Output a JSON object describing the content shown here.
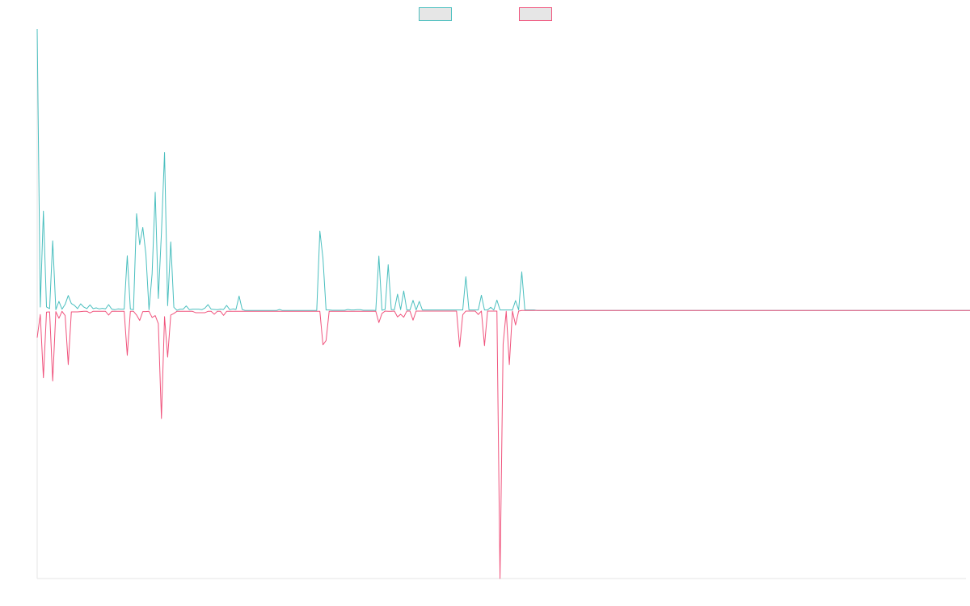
{
  "chart_data": {
    "type": "line",
    "title": "",
    "xlabel": "",
    "ylabel": "",
    "grid": false,
    "legend_position": "top-center",
    "ylim": [
      -100,
      105
    ],
    "x_count": 300,
    "series": [
      {
        "color": "#4bbfbf",
        "fill": "#e6e6e6",
        "values": [
          105,
          1.3,
          37.1,
          1.3,
          0.7,
          26,
          0.3,
          3.4,
          0.5,
          2.3,
          5.6,
          2.6,
          1.9,
          0.7,
          2.5,
          1.3,
          0.7,
          2.1,
          0.7,
          1,
          0.6,
          0.8,
          0.6,
          2.2,
          0.5,
          0.3,
          0.6,
          0.5,
          0.5,
          20.4,
          0.5,
          0.3,
          36.1,
          24.6,
          31,
          20.9,
          0.3,
          13.7,
          44.1,
          4.5,
          29,
          59,
          1.8,
          25.6,
          1.2,
          0.1,
          0.5,
          0.5,
          1.7,
          0.3,
          0.5,
          0.5,
          0.5,
          0.3,
          0.9,
          2.2,
          0.5,
          0.4,
          0.3,
          0.5,
          0.4,
          1.9,
          0.3,
          0.6,
          0.4,
          5.4,
          0.4,
          0,
          0,
          0,
          0,
          0,
          0,
          0,
          0,
          0,
          0,
          0,
          0.4,
          0,
          0,
          0,
          0,
          0,
          0,
          0,
          0,
          0,
          0,
          0,
          0,
          29.6,
          19.5,
          0.2,
          0.2,
          0.1,
          0.1,
          0.1,
          0.1,
          0.1,
          0.4,
          0.2,
          0.2,
          0.3,
          0.3,
          0.1,
          0.1,
          0.1,
          0.1,
          0,
          20.3,
          0.1,
          0.4,
          17.1,
          0.3,
          0.3,
          6.1,
          0.3,
          7.3,
          0.2,
          0.2,
          3.8,
          0.2,
          3.4,
          0.2,
          0.2,
          0.2,
          0.2,
          0.2,
          0.2,
          0.2,
          0.2,
          0.2,
          0.2,
          0.2,
          0.2,
          0.2,
          0.2,
          12.6,
          0.2,
          0.2,
          0.2,
          0.2,
          5.7,
          0.2,
          0.2,
          1.2,
          0.2,
          3.9,
          0.2,
          0.2,
          0.2,
          0.2,
          0.2,
          3.7,
          0.2,
          14.4,
          0.2,
          0.2,
          0.2,
          0.2,
          0,
          0,
          0,
          0,
          0,
          0,
          0,
          0,
          0,
          0,
          0,
          0,
          0,
          0,
          0,
          0,
          0,
          0,
          0,
          0,
          0,
          0,
          0,
          0,
          0,
          0,
          0,
          0,
          0,
          0,
          0,
          0,
          0,
          0,
          0,
          0,
          0,
          0,
          0,
          0,
          0,
          0,
          0,
          0,
          0,
          0,
          0,
          0,
          0,
          0,
          0,
          0,
          0,
          0,
          0,
          0,
          0,
          0,
          0,
          0,
          0,
          0,
          0,
          0,
          0,
          0,
          0,
          0,
          0,
          0,
          0,
          0,
          0,
          0,
          0,
          0,
          0,
          0,
          0,
          0,
          0,
          0,
          0,
          0,
          0,
          0,
          0,
          0,
          0,
          0,
          0,
          0,
          0,
          0,
          0,
          0,
          0,
          0,
          0,
          0,
          0,
          0,
          0,
          0,
          0,
          0,
          0,
          0,
          0,
          0,
          0,
          0,
          0,
          0,
          0,
          0,
          0,
          0,
          0,
          0,
          0,
          0,
          0,
          0,
          0,
          0,
          0,
          0,
          0,
          0,
          0,
          0,
          0,
          0,
          0,
          0,
          0,
          0,
          0,
          0,
          0
        ]
      },
      {
        "color": "#f0547d",
        "fill": "#e6e6e6",
        "values": [
          -10.1,
          -1.5,
          -25.1,
          -0.6,
          -0.5,
          -26.3,
          -0.4,
          -2.9,
          -0.3,
          -1.9,
          -20.2,
          -0.5,
          -0.5,
          -0.5,
          -0.4,
          -0.3,
          -0.3,
          -0.9,
          -0.3,
          -0.3,
          -0.3,
          -0.3,
          -0.3,
          -1.7,
          -0.3,
          -0.3,
          -0.3,
          -0.3,
          -0.3,
          -16.7,
          -0.3,
          -0.3,
          -1.7,
          -3.7,
          -0.4,
          -0.4,
          -0.3,
          -2.6,
          -1.9,
          -4.9,
          -40.3,
          -2.3,
          -17.4,
          -1.7,
          -1.1,
          -0.3,
          -0.3,
          -0.3,
          -0.3,
          -0.3,
          -0.3,
          -0.8,
          -0.8,
          -0.8,
          -0.8,
          -0.3,
          -0.3,
          -1.4,
          -0.3,
          -0.3,
          -1.8,
          -0.3,
          -0.3,
          -0.3,
          -0.3,
          -0.3,
          -0.3,
          -0.3,
          -0.3,
          -0.3,
          -0.3,
          -0.3,
          -0.3,
          -0.3,
          -0.3,
          -0.3,
          -0.3,
          -0.3,
          -0.3,
          -0.3,
          -0.3,
          -0.3,
          -0.3,
          -0.3,
          -0.3,
          -0.3,
          -0.3,
          -0.3,
          -0.3,
          -0.3,
          -0.3,
          -0.3,
          -12.8,
          -11.2,
          -0.3,
          -0.3,
          -0.3,
          -0.3,
          -0.3,
          -0.3,
          -0.3,
          -0.3,
          -0.3,
          -0.3,
          -0.3,
          -0.3,
          -0.3,
          -0.3,
          -0.3,
          -0.3,
          -4.5,
          -1.1,
          -0.2,
          -0.3,
          -0.3,
          -0.2,
          -2.4,
          -1.4,
          -2.5,
          -0.2,
          -0.2,
          -3.6,
          -0.2,
          -0.2,
          -0.2,
          -0.2,
          -0.2,
          -0.2,
          -0.2,
          -0.2,
          -0.2,
          -0.2,
          -0.2,
          -0.2,
          -0.2,
          -0.2,
          -13.5,
          -1.6,
          -0.2,
          -0.2,
          -0.2,
          -0.2,
          -1.5,
          -0.2,
          -13.1,
          -0.2,
          -0.2,
          -0.2,
          -0.2,
          -100,
          -12.6,
          -0.3,
          -20.2,
          -0.2,
          -5.4,
          -0.2,
          0,
          0,
          0,
          0,
          0,
          0,
          0,
          0,
          0,
          0,
          0,
          0,
          0,
          0,
          0,
          0,
          0,
          0,
          0,
          0,
          0,
          0,
          0,
          0,
          0,
          0,
          0,
          0,
          0,
          0,
          0,
          0,
          0,
          0,
          0,
          0,
          0,
          0,
          0,
          0,
          0,
          0,
          0,
          0,
          0,
          0,
          0,
          0,
          0,
          0,
          0,
          0,
          0,
          0,
          0,
          0,
          0,
          0,
          0,
          0,
          0,
          0,
          0,
          0,
          0,
          0,
          0,
          0,
          0,
          0,
          0,
          0,
          0,
          0,
          0,
          0,
          0,
          0,
          0,
          0,
          0,
          0,
          0,
          0,
          0,
          0,
          0,
          0,
          0,
          0,
          0,
          0,
          0,
          0,
          0,
          0,
          0,
          0,
          0,
          0,
          0,
          0,
          0,
          0,
          0,
          0,
          0,
          0,
          0,
          0,
          0,
          0,
          0,
          0,
          0,
          0,
          0,
          0,
          0,
          0,
          0,
          0,
          0,
          0,
          0,
          0,
          0,
          0,
          0,
          0,
          0,
          0,
          0,
          0,
          0,
          0,
          0,
          0,
          0,
          0,
          0,
          0,
          0,
          0,
          0,
          0,
          0
        ]
      }
    ]
  }
}
